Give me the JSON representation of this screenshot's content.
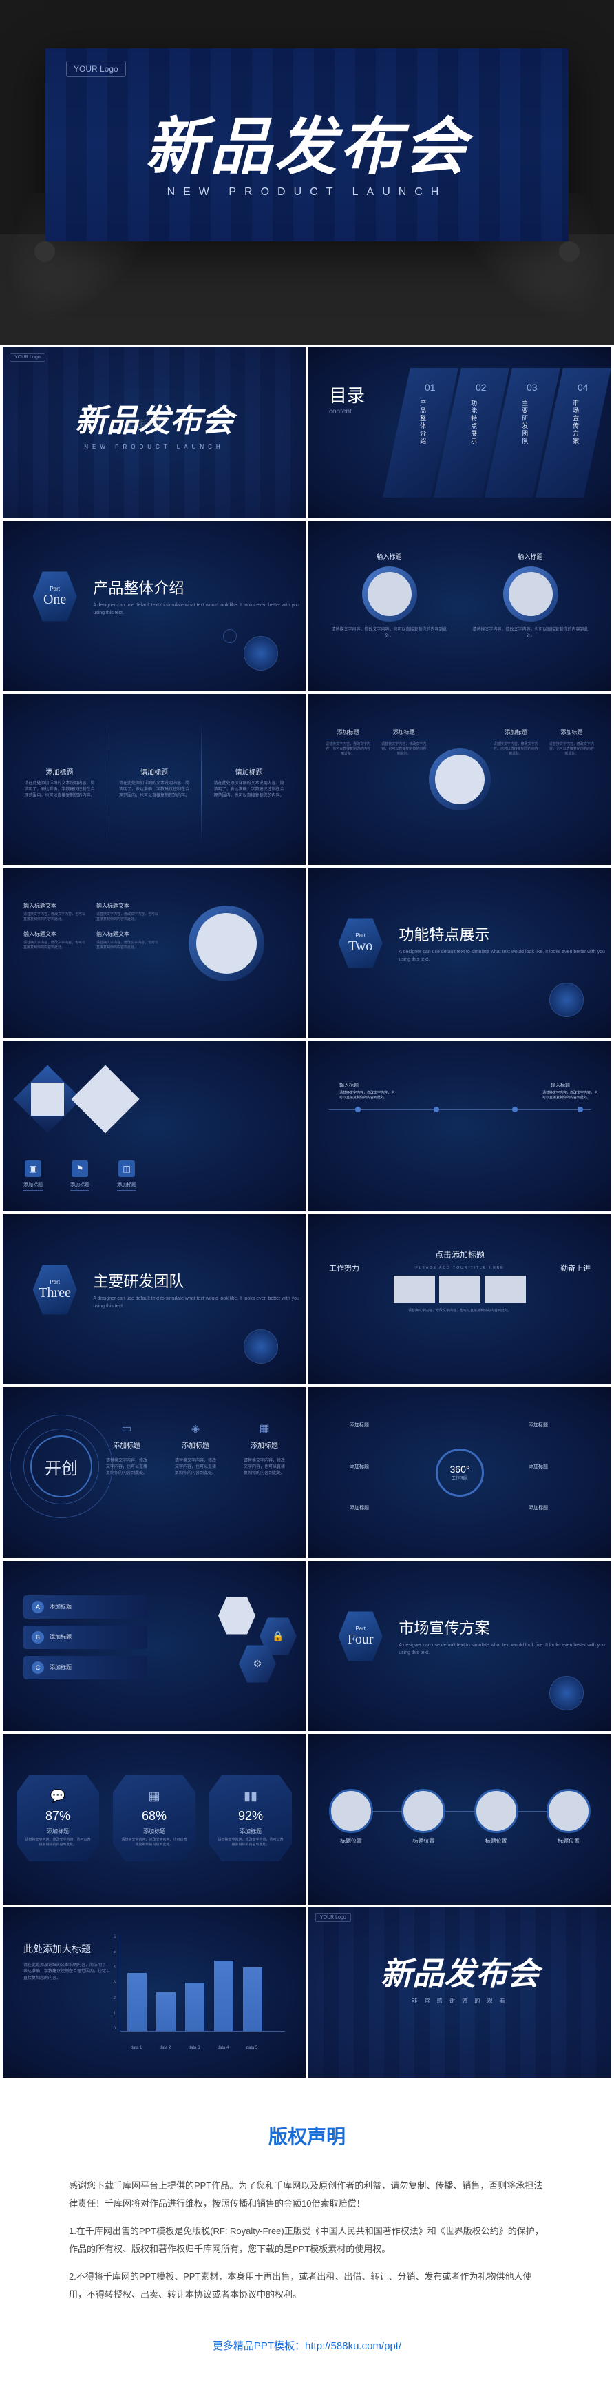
{
  "brand": {
    "logo": "YOUR Logo",
    "watermark": "千库网",
    "site": "588ku.com"
  },
  "hero": {
    "title": "新品发布会",
    "subtitle": "NEW PRODUCT LAUNCH"
  },
  "toc": {
    "label": "目录",
    "label_en": "content",
    "items": [
      {
        "num": "01",
        "txt": "产品整体介绍"
      },
      {
        "num": "02",
        "txt": "功能特点展示"
      },
      {
        "num": "03",
        "txt": "主要研发团队"
      },
      {
        "num": "04",
        "txt": "市场宣传方案"
      }
    ]
  },
  "sections": [
    {
      "part": "Part",
      "num": "One",
      "title": "产品整体介绍",
      "desc": "A designer can use default text to simulate what text would look like. It looks even better with you using this text."
    },
    {
      "part": "Part",
      "num": "Two",
      "title": "功能特点展示",
      "desc": "A designer can use default text to simulate what text would look like. It looks even better with you using this text."
    },
    {
      "part": "Part",
      "num": "Three",
      "title": "主要研发团队",
      "desc": "A designer can use default text to simulate what text would look like. It looks even better with you using this text."
    },
    {
      "part": "Part",
      "num": "Four",
      "title": "市场宣传方案",
      "desc": "A designer can use default text to simulate what text would look like. It looks even better with you using this text."
    }
  ],
  "content": {
    "placeholder_title": "输入标题",
    "placeholder_title2": "添加标题",
    "placeholder_title3": "请加标题",
    "placeholder_title4": "输入标题文本",
    "placeholder_text": "请替换文字内容，修改文字内容，也可以直接复制你的内容到此处。",
    "placeholder_long": "请在此处添加详细的文本说明内容，简洁明了，表达准确，字数建议控制在合理范围内，也可以直接复制您的内容。",
    "click_add": "点击添加标题",
    "click_add_en": "PLEASE ADD YOUR TITLE HERE",
    "work": "工作努力",
    "study": "勤奋上进",
    "big_title": "此处添加大标题",
    "kai": "开创",
    "ring": {
      "v": "360°",
      "l": "工作团队"
    }
  },
  "abc": [
    {
      "l": "A",
      "t": "添加标题"
    },
    {
      "l": "B",
      "t": "添加标题"
    },
    {
      "l": "C",
      "t": "添加标题"
    }
  ],
  "pct": [
    {
      "v": "87%",
      "h": "添加标题"
    },
    {
      "v": "68%",
      "h": "添加标题"
    },
    {
      "v": "92%",
      "h": "添加标题"
    }
  ],
  "chain": [
    "标题位置",
    "标题位置",
    "标题位置",
    "标题位置"
  ],
  "chart": {
    "type": "bar",
    "ylim": [
      0,
      7
    ],
    "ytick_step": 1,
    "categories": [
      "data 1",
      "data 2",
      "data 3",
      "data 4",
      "data 5"
    ],
    "values": [
      4.2,
      2.8,
      3.5,
      5.1,
      4.6
    ],
    "bar_color": "#3a6abb",
    "grid_color": "#3a5a98",
    "background": "#0a1a40"
  },
  "colors": {
    "bg_dark": "#060e28",
    "bg_mid": "#0d2358",
    "accent": "#3a6abb",
    "accent_light": "#4a7acc",
    "text": "#c8d4ee",
    "text_bright": "#ffffff",
    "text_dim": "#7a8ab4",
    "divider": "#3a5a98"
  },
  "copyright": {
    "title": "版权声明",
    "intro": "感谢您下载千库网平台上提供的PPT作品。为了您和千库网以及原创作者的利益，请勿复制、传播、销售，否则将承担法律责任！千库网将对作品进行维权，按照传播和销售的金额10倍索取赔偿！",
    "items": [
      "1.在千库网出售的PPT模板是免版税(RF: Royalty-Free)正版受《中国人民共和国著作权法》和《世界版权公约》的保护，作品的所有权、版权和著作权归千库网所有，您下载的是PPT模板素材的使用权。",
      "2.不得将千库网的PPT模板、PPT素材，本身用于再出售，或者出租、出借、转让、分销、发布或者作为礼物供他人使用，不得转授权、出卖、转让本协议或者本协议中的权利。"
    ],
    "more": "更多精品PPT模板：http://588ku.com/ppt/"
  }
}
